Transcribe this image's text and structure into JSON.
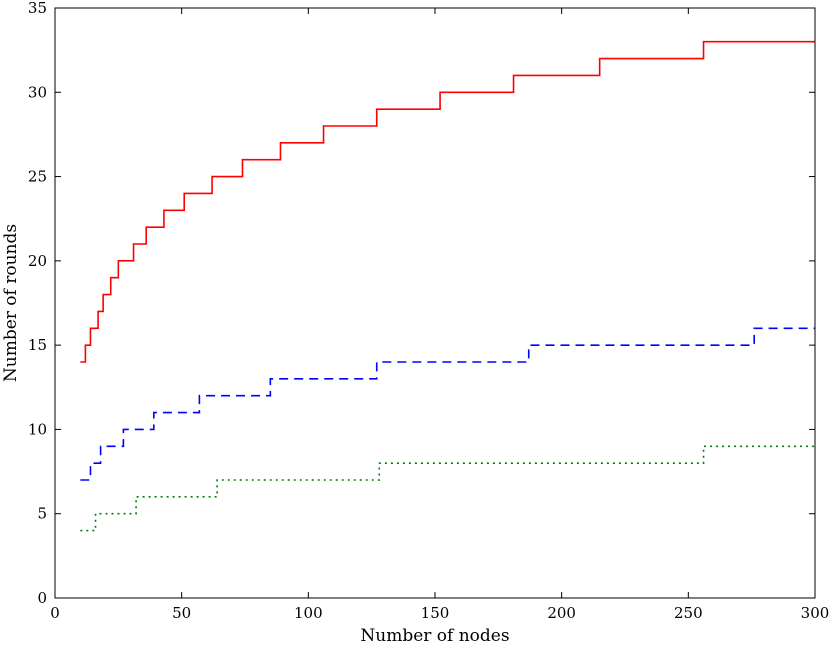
{
  "chart_data": {
    "type": "line",
    "title": "",
    "xlabel": "Number of nodes",
    "ylabel": "Number of rounds",
    "xlim": [
      0,
      300
    ],
    "ylim": [
      0,
      35
    ],
    "xticks": [
      0,
      50,
      100,
      150,
      200,
      250,
      300
    ],
    "yticks": [
      0,
      5,
      10,
      15,
      20,
      25,
      30,
      35
    ],
    "grid": false,
    "legend": "none",
    "series": [
      {
        "color": "#ff0000",
        "linestyle": "solid",
        "steps": [
          [
            10,
            14
          ],
          [
            12,
            15
          ],
          [
            14,
            16
          ],
          [
            17,
            17
          ],
          [
            19,
            18
          ],
          [
            22,
            19
          ],
          [
            25,
            20
          ],
          [
            31,
            21
          ],
          [
            36,
            22
          ],
          [
            43,
            23
          ],
          [
            51,
            24
          ],
          [
            62,
            25
          ],
          [
            74,
            26
          ],
          [
            89,
            27
          ],
          [
            106,
            28
          ],
          [
            127,
            29
          ],
          [
            152,
            30
          ],
          [
            181,
            31
          ],
          [
            215,
            32
          ],
          [
            256,
            33
          ],
          [
            300,
            33
          ]
        ]
      },
      {
        "color": "#0000ff",
        "linestyle": "dashed",
        "steps": [
          [
            10,
            7
          ],
          [
            14,
            8
          ],
          [
            18,
            9
          ],
          [
            27,
            10
          ],
          [
            39,
            11
          ],
          [
            57,
            12
          ],
          [
            85,
            13
          ],
          [
            127,
            14
          ],
          [
            187,
            15
          ],
          [
            276,
            16
          ],
          [
            300,
            16
          ]
        ]
      },
      {
        "color": "#008000",
        "linestyle": "dotted",
        "steps": [
          [
            10,
            4
          ],
          [
            16,
            5
          ],
          [
            32,
            6
          ],
          [
            64,
            7
          ],
          [
            128,
            8
          ],
          [
            256,
            9
          ],
          [
            300,
            9
          ]
        ]
      }
    ]
  }
}
